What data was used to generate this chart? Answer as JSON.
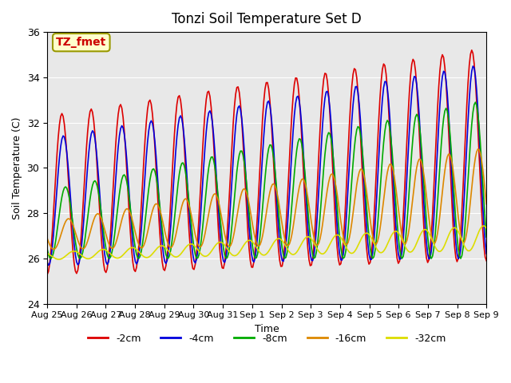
{
  "title": "Tonzi Soil Temperature Set D",
  "xlabel": "Time",
  "ylabel": "Soil Temperature (C)",
  "ylim": [
    24,
    36
  ],
  "yticks": [
    24,
    26,
    28,
    30,
    32,
    34,
    36
  ],
  "annotation_text": "TZ_fmet",
  "annotation_color": "#cc0000",
  "annotation_bg": "#ffffcc",
  "annotation_border": "#999900",
  "bg_color": "#e8e8e8",
  "line_colors": {
    "-2cm": "#dd0000",
    "-4cm": "#0000dd",
    "-8cm": "#00aa00",
    "-16cm": "#dd8800",
    "-32cm": "#dddd00"
  },
  "legend_labels": [
    "-2cm",
    "-4cm",
    "-8cm",
    "-16cm",
    "-32cm"
  ],
  "xtick_labels": [
    "Aug 25",
    "Aug 26",
    "Aug 27",
    "Aug 28",
    "Aug 29",
    "Aug 30",
    "Aug 31",
    "Sep 1",
    "Sep 2",
    "Sep 3",
    "Sep 4",
    "Sep 5",
    "Sep 6",
    "Sep 7",
    "Sep 8",
    "Sep 9"
  ]
}
